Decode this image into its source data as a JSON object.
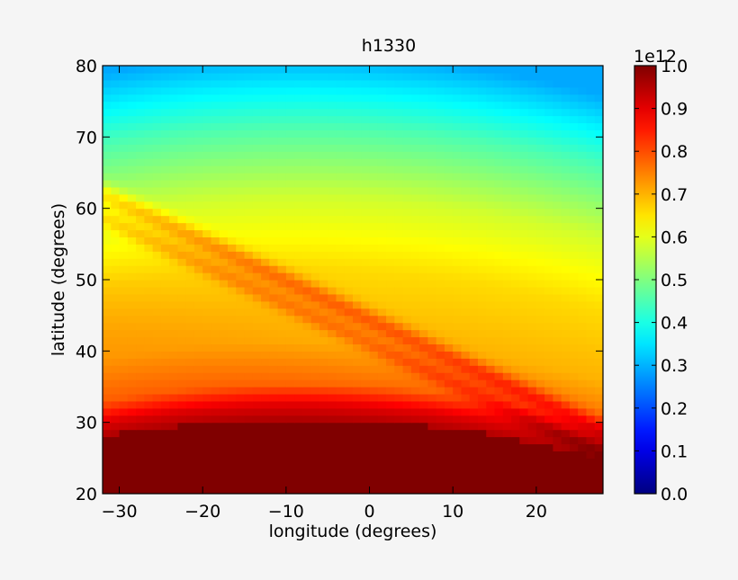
{
  "chart_data": {
    "type": "heatmap",
    "title": "h1330",
    "xlabel": "longitude (degrees)",
    "ylabel": "latitude (degrees)",
    "xlim": [
      -32,
      28
    ],
    "ylim": [
      20,
      80
    ],
    "x_ticks": [
      -30,
      -20,
      -10,
      0,
      10,
      20
    ],
    "x_tick_labels": [
      "−30",
      "−20",
      "−10",
      "0",
      "10",
      "20"
    ],
    "y_ticks": [
      20,
      30,
      40,
      50,
      60,
      70,
      80
    ],
    "y_tick_labels": [
      "20",
      "30",
      "40",
      "50",
      "60",
      "70",
      "80"
    ],
    "colorbar": {
      "colormap": "jet",
      "min": 0.0,
      "max": 1.0,
      "multiplier_label": "1e12",
      "ticks": [
        0.0,
        0.1,
        0.2,
        0.3,
        0.4,
        0.5,
        0.6,
        0.7,
        0.8,
        0.9,
        1.0
      ],
      "tick_labels": [
        "0.0",
        "0.1",
        "0.2",
        "0.3",
        "0.4",
        "0.5",
        "0.6",
        "0.7",
        "0.8",
        "0.9",
        "1.0"
      ]
    },
    "grid": false,
    "field_description_values": {
      "latitude_profile": [
        [
          20,
          1.0
        ],
        [
          27,
          1.0
        ],
        [
          31,
          0.9
        ],
        [
          34,
          0.77
        ],
        [
          40,
          0.7
        ],
        [
          50,
          0.66
        ],
        [
          60,
          0.58
        ],
        [
          70,
          0.45
        ],
        [
          80,
          0.29
        ]
      ],
      "diagonal_band": {
        "from": [
          -32,
          62
        ],
        "to": [
          26,
          30
        ],
        "value_boost": 0.1
      }
    }
  }
}
